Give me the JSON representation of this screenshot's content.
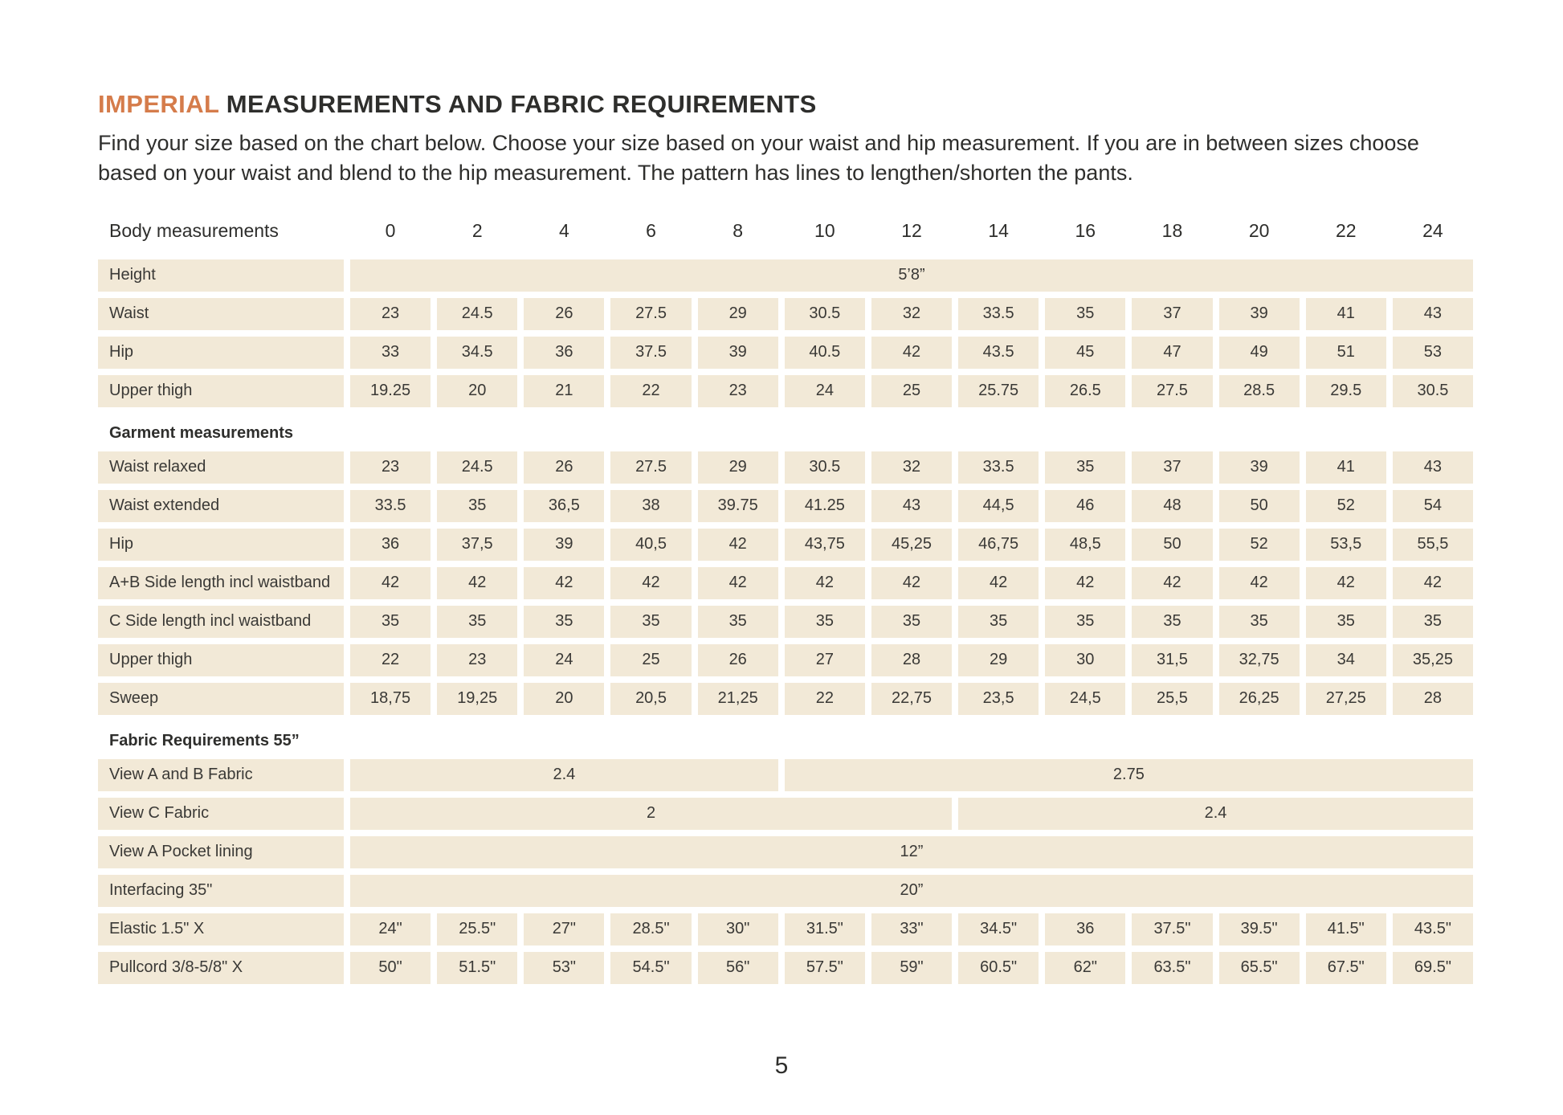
{
  "page": {
    "title_highlight": "IMPERIAL",
    "title_rest": " MEASUREMENTS AND FABRIC REQUIREMENTS",
    "intro": "Find your size based on the chart below. Choose your size based on your waist and hip measurement. If you are in between sizes choose based on your waist and blend to the hip measurement. The pattern has lines to lengthen/shorten the pants.",
    "page_number": "5"
  },
  "colors": {
    "accent": "#d57c4b",
    "cell_background": "#f2e9d7",
    "text": "#2e2e2c"
  },
  "table": {
    "header_label": "Body measurements",
    "sizes": [
      "0",
      "2",
      "4",
      "6",
      "8",
      "10",
      "12",
      "14",
      "16",
      "18",
      "20",
      "22",
      "24"
    ],
    "rows": [
      {
        "label": "Height",
        "cells": [
          {
            "value": "5’8”",
            "span": 13
          }
        ]
      },
      {
        "label": "Waist",
        "values": [
          "23",
          "24.5",
          "26",
          "27.5",
          "29",
          "30.5",
          "32",
          "33.5",
          "35",
          "37",
          "39",
          "41",
          "43"
        ]
      },
      {
        "label": "Hip",
        "values": [
          "33",
          "34.5",
          "36",
          "37.5",
          "39",
          "40.5",
          "42",
          "43.5",
          "45",
          "47",
          "49",
          "51",
          "53"
        ]
      },
      {
        "label": "Upper thigh",
        "values": [
          "19.25",
          "20",
          "21",
          "22",
          "23",
          "24",
          "25",
          "25.75",
          "26.5",
          "27.5",
          "28.5",
          "29.5",
          "30.5"
        ]
      },
      {
        "section": "Garment measurements"
      },
      {
        "label": "Waist relaxed",
        "values": [
          "23",
          "24.5",
          "26",
          "27.5",
          "29",
          "30.5",
          "32",
          "33.5",
          "35",
          "37",
          "39",
          "41",
          "43"
        ]
      },
      {
        "label": "Waist extended",
        "values": [
          "33.5",
          "35",
          "36,5",
          "38",
          "39.75",
          "41.25",
          "43",
          "44,5",
          "46",
          "48",
          "50",
          "52",
          "54"
        ]
      },
      {
        "label": "Hip",
        "values": [
          "36",
          "37,5",
          "39",
          "40,5",
          "42",
          "43,75",
          "45,25",
          "46,75",
          "48,5",
          "50",
          "52",
          "53,5",
          "55,5"
        ]
      },
      {
        "label": "A+B Side length incl waistband",
        "values": [
          "42",
          "42",
          "42",
          "42",
          "42",
          "42",
          "42",
          "42",
          "42",
          "42",
          "42",
          "42",
          "42"
        ]
      },
      {
        "label": "C Side length incl waistband",
        "values": [
          "35",
          "35",
          "35",
          "35",
          "35",
          "35",
          "35",
          "35",
          "35",
          "35",
          "35",
          "35",
          "35"
        ]
      },
      {
        "label": "Upper thigh",
        "values": [
          "22",
          "23",
          "24",
          "25",
          "26",
          "27",
          "28",
          "29",
          "30",
          "31,5",
          "32,75",
          "34",
          "35,25"
        ]
      },
      {
        "label": "Sweep",
        "values": [
          "18,75",
          "19,25",
          "20",
          "20,5",
          "21,25",
          "22",
          "22,75",
          "23,5",
          "24,5",
          "25,5",
          "26,25",
          "27,25",
          "28"
        ]
      },
      {
        "section": "Fabric Requirements 55”"
      },
      {
        "label": "View A  and B Fabric",
        "cells": [
          {
            "value": "2.4",
            "span": 5
          },
          {
            "value": "2.75",
            "span": 8
          }
        ]
      },
      {
        "label": "View C Fabric",
        "cells": [
          {
            "value": "2",
            "span": 7
          },
          {
            "value": "2.4",
            "span": 6
          }
        ]
      },
      {
        "label": "View A Pocket lining",
        "cells": [
          {
            "value": "12”",
            "span": 13
          }
        ]
      },
      {
        "label": "Interfacing 35\"",
        "cells": [
          {
            "value": "20”",
            "span": 13
          }
        ]
      },
      {
        "label": "Elastic  1.5\" X",
        "values": [
          "24\"",
          "25.5\"",
          "27\"",
          "28.5\"",
          "30\"",
          "31.5\"",
          "33\"",
          "34.5\"",
          "36",
          "37.5\"",
          "39.5\"",
          "41.5\"",
          "43.5\""
        ]
      },
      {
        "label": "Pullcord 3/8-5/8\" X",
        "values": [
          "50\"",
          "51.5\"",
          "53\"",
          "54.5\"",
          "56\"",
          "57.5\"",
          "59\"",
          "60.5\"",
          "62\"",
          "63.5\"",
          "65.5\"",
          "67.5\"",
          "69.5\""
        ]
      }
    ]
  }
}
